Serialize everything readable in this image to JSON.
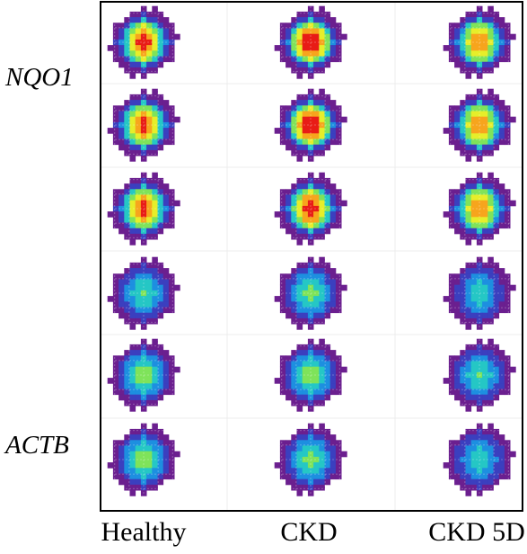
{
  "row_labels": {
    "gene_1": "NQO1",
    "gene_2": "ACTB"
  },
  "column_labels": [
    "Healthy",
    "CKD",
    "CKD 5D"
  ],
  "spot_grid": {
    "rows": 6,
    "columns": 3,
    "row_groups": [
      {
        "label": "NQO1",
        "rows": [
          1,
          2,
          3
        ]
      },
      {
        "label": "ACTB",
        "rows": [
          4,
          5,
          6
        ]
      }
    ],
    "intensity": [
      [
        0.95,
        1.0,
        0.85
      ],
      [
        0.93,
        1.0,
        0.85
      ],
      [
        0.92,
        0.98,
        0.85
      ],
      [
        0.5,
        0.55,
        0.45
      ],
      [
        0.58,
        0.58,
        0.5
      ],
      [
        0.58,
        0.55,
        0.48
      ]
    ]
  },
  "colormap": [
    "#6b1f8f",
    "#3b3fbf",
    "#1d8fe0",
    "#25c7c5",
    "#7fe35a",
    "#e6ee2a",
    "#f7a51d",
    "#e81c16"
  ]
}
